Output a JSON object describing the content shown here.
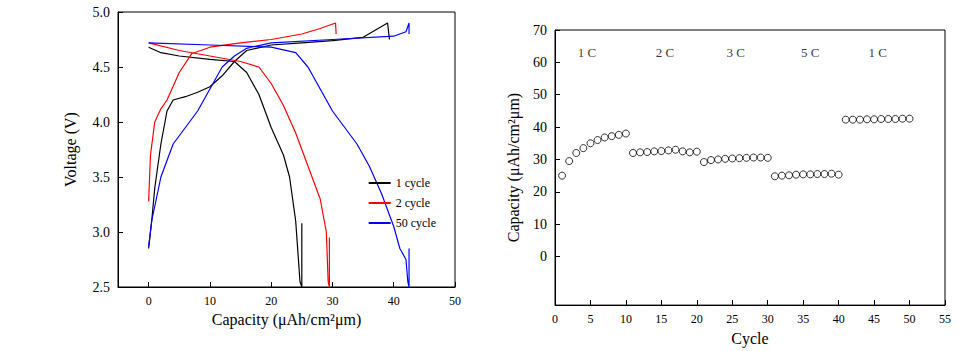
{
  "chart_data": [
    {
      "type": "line",
      "x_label": "Capacity (μAh/cm²μm)",
      "y_label": "Voltage (V)",
      "xlim": [
        -5,
        50
      ],
      "xticks": [
        0,
        10,
        20,
        30,
        40,
        50
      ],
      "ylim": [
        2.5,
        5.0
      ],
      "yticks": [
        2.5,
        {
          "value": 3,
          "label": "3.0"
        },
        3.5,
        {
          "value": 4,
          "label": "4.0"
        },
        4.5,
        {
          "value": 5,
          "label": "5.0"
        }
      ],
      "grid": false,
      "legend": "right",
      "series": [
        {
          "name": "1 cycle",
          "color": "#000000",
          "x": [
            0,
            0.5,
            1,
            2,
            3,
            4,
            6,
            8,
            10,
            12,
            14,
            16,
            20,
            25,
            30,
            35,
            39,
            39.3,
            null,
            0,
            2,
            5,
            10,
            14,
            16,
            18,
            20,
            22,
            23,
            24,
            24.7,
            25,
            25
          ],
          "values": [
            2.85,
            3.1,
            3.4,
            3.8,
            4.1,
            4.2,
            4.23,
            4.27,
            4.32,
            4.42,
            4.55,
            4.65,
            4.7,
            4.72,
            4.74,
            4.77,
            4.9,
            4.75,
            null,
            4.68,
            4.63,
            4.6,
            4.57,
            4.55,
            4.45,
            4.25,
            3.95,
            3.7,
            3.5,
            3.1,
            2.55,
            2.5,
            3.08
          ]
        },
        {
          "name": "2 cycle",
          "color": "#ff0000",
          "x": [
            0,
            0.3,
            1,
            2,
            3,
            5,
            7,
            10,
            15,
            20,
            25,
            28,
            30.5,
            30.6,
            null,
            0,
            5,
            10,
            15,
            18,
            20,
            22,
            24,
            26,
            28,
            29,
            29.3,
            29.5,
            29.5
          ],
          "values": [
            3.28,
            3.7,
            4.0,
            4.12,
            4.2,
            4.45,
            4.62,
            4.68,
            4.72,
            4.75,
            4.8,
            4.85,
            4.9,
            4.8,
            null,
            4.72,
            4.65,
            4.6,
            4.55,
            4.5,
            4.35,
            4.15,
            3.9,
            3.6,
            3.3,
            3.0,
            2.55,
            2.5,
            2.95
          ]
        },
        {
          "name": "50 cycle",
          "color": "#0000ff",
          "x": [
            0,
            0.5,
            2,
            4,
            6,
            8,
            10,
            12,
            14,
            16,
            20,
            30,
            40,
            42,
            42.5,
            42.5,
            null,
            0,
            10,
            20,
            24,
            26,
            28,
            30,
            32,
            34,
            36,
            38,
            40,
            41,
            42,
            42.3,
            42.5,
            42.5
          ],
          "values": [
            2.87,
            3.1,
            3.5,
            3.8,
            3.95,
            4.1,
            4.3,
            4.5,
            4.6,
            4.67,
            4.72,
            4.75,
            4.78,
            4.82,
            4.9,
            4.8,
            null,
            4.72,
            4.7,
            4.68,
            4.63,
            4.5,
            4.3,
            4.1,
            3.95,
            3.8,
            3.6,
            3.35,
            3.05,
            2.85,
            2.75,
            2.55,
            2.5,
            2.85
          ]
        }
      ]
    },
    {
      "type": "scatter",
      "x_label": "Cycle",
      "y_label": "Capacity (μAh/cm²μm)",
      "xlim": [
        0,
        55
      ],
      "xticks": [
        0,
        5,
        10,
        15,
        20,
        25,
        30,
        35,
        40,
        45,
        50,
        55
      ],
      "ylim": [
        -15,
        70
      ],
      "yticks": [
        0,
        10,
        20,
        30,
        40,
        50,
        60,
        70
      ],
      "grid": false,
      "marker": "open_circle",
      "color": "#000000",
      "x": [
        1,
        2,
        3,
        4,
        5,
        6,
        7,
        8,
        9,
        10,
        11,
        12,
        13,
        14,
        15,
        16,
        17,
        18,
        19,
        20,
        21,
        22,
        23,
        24,
        25,
        26,
        27,
        28,
        29,
        30,
        31,
        32,
        33,
        34,
        35,
        36,
        37,
        38,
        39,
        40,
        41,
        42,
        43,
        44,
        45,
        46,
        47,
        48,
        49,
        50
      ],
      "values": [
        25,
        29.5,
        32,
        33.5,
        35,
        36,
        36.8,
        37.2,
        37.6,
        38,
        32,
        32.2,
        32.3,
        32.5,
        32.6,
        32.8,
        33,
        32.5,
        32.2,
        32.4,
        29.2,
        29.8,
        30,
        30.2,
        30.3,
        30.4,
        30.5,
        30.6,
        30.6,
        30.5,
        24.8,
        25,
        25.1,
        25.3,
        25.4,
        25.4,
        25.5,
        25.5,
        25.6,
        25.3,
        42.3,
        42.3,
        42.3,
        42.4,
        42.4,
        42.5,
        42.5,
        42.5,
        42.6,
        42.6
      ],
      "annotations": [
        {
          "text": "1 C",
          "x": 4.5,
          "y": 63
        },
        {
          "text": "2 C",
          "x": 15.5,
          "y": 63
        },
        {
          "text": "3 C",
          "x": 25.5,
          "y": 63
        },
        {
          "text": "5 C",
          "x": 36,
          "y": 63
        },
        {
          "text": "1 C",
          "x": 45.5,
          "y": 63
        }
      ]
    }
  ]
}
